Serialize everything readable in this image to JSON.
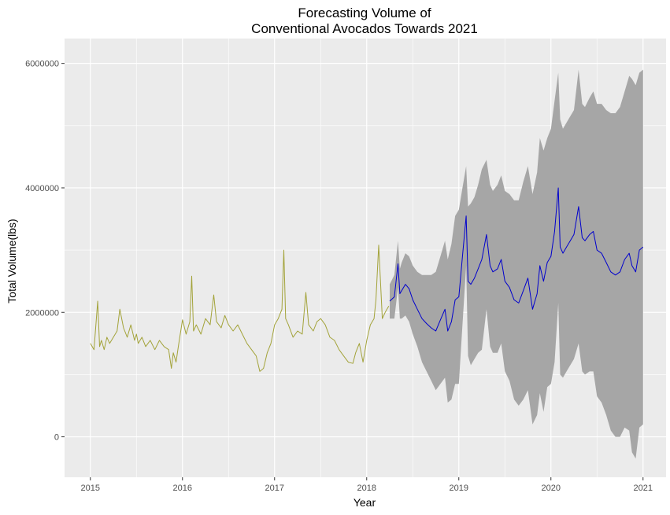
{
  "chart_data": {
    "type": "line",
    "title_line1": "Forecasting Volume of",
    "title_line2": "Conventional Avocados Towards 2021",
    "xlabel": "Year",
    "ylabel": "Total Volume(lbs)",
    "xlim": [
      2014.72,
      2021.25
    ],
    "ylim": [
      -650000,
      6400000
    ],
    "x_ticks": [
      2015,
      2016,
      2017,
      2018,
      2019,
      2020,
      2021
    ],
    "x_tick_labels": [
      "2015",
      "2016",
      "2017",
      "2018",
      "2019",
      "2020",
      "2021"
    ],
    "y_ticks": [
      0,
      2000000,
      4000000,
      6000000
    ],
    "y_tick_labels": [
      "0",
      "2000000",
      "4000000",
      "6000000"
    ],
    "colors": {
      "panel": "#ebebeb",
      "grid": "#ffffff",
      "history": "#a3a33a",
      "forecast": "#0000cd",
      "band": "#a6a6a6"
    },
    "series": [
      {
        "name": "historical",
        "x": [
          2015.0,
          2015.04,
          2015.08,
          2015.1,
          2015.12,
          2015.15,
          2015.18,
          2015.21,
          2015.25,
          2015.29,
          2015.32,
          2015.36,
          2015.4,
          2015.44,
          2015.48,
          2015.5,
          2015.52,
          2015.56,
          2015.6,
          2015.65,
          2015.7,
          2015.75,
          2015.8,
          2015.85,
          2015.88,
          2015.9,
          2015.93,
          2015.96,
          2016.0,
          2016.04,
          2016.08,
          2016.1,
          2016.12,
          2016.15,
          2016.2,
          2016.25,
          2016.3,
          2016.34,
          2016.37,
          2016.42,
          2016.46,
          2016.5,
          2016.55,
          2016.6,
          2016.65,
          2016.7,
          2016.75,
          2016.8,
          2016.84,
          2016.88,
          2016.92,
          2016.96,
          2017.0,
          2017.04,
          2017.08,
          2017.1,
          2017.12,
          2017.15,
          2017.2,
          2017.25,
          2017.3,
          2017.34,
          2017.37,
          2017.42,
          2017.46,
          2017.5,
          2017.55,
          2017.6,
          2017.65,
          2017.7,
          2017.75,
          2017.8,
          2017.85,
          2017.88,
          2017.92,
          2017.96,
          2018.0,
          2018.04,
          2018.08,
          2018.1,
          2018.13,
          2018.17,
          2018.2,
          2018.24
        ],
        "values": [
          1500000,
          1400000,
          2180000,
          1450000,
          1550000,
          1400000,
          1600000,
          1500000,
          1600000,
          1700000,
          2050000,
          1750000,
          1600000,
          1800000,
          1550000,
          1650000,
          1500000,
          1600000,
          1450000,
          1550000,
          1400000,
          1550000,
          1450000,
          1400000,
          1100000,
          1350000,
          1200000,
          1500000,
          1880000,
          1650000,
          1850000,
          2580000,
          1700000,
          1800000,
          1650000,
          1900000,
          1800000,
          2280000,
          1850000,
          1750000,
          1950000,
          1800000,
          1700000,
          1800000,
          1650000,
          1500000,
          1400000,
          1300000,
          1050000,
          1100000,
          1350000,
          1500000,
          1800000,
          1900000,
          2050000,
          3000000,
          1900000,
          1800000,
          1600000,
          1700000,
          1650000,
          2320000,
          1800000,
          1700000,
          1850000,
          1900000,
          1800000,
          1600000,
          1550000,
          1400000,
          1300000,
          1200000,
          1180000,
          1350000,
          1500000,
          1200000,
          1550000,
          1800000,
          1900000,
          2200000,
          3080000,
          1900000,
          2000000,
          2100000
        ]
      },
      {
        "name": "forecast",
        "x": [
          2018.25,
          2018.3,
          2018.34,
          2018.36,
          2018.38,
          2018.42,
          2018.46,
          2018.5,
          2018.55,
          2018.6,
          2018.65,
          2018.7,
          2018.75,
          2018.8,
          2018.85,
          2018.88,
          2018.92,
          2018.96,
          2019.0,
          2019.04,
          2019.08,
          2019.1,
          2019.13,
          2019.17,
          2019.21,
          2019.25,
          2019.3,
          2019.34,
          2019.37,
          2019.42,
          2019.46,
          2019.5,
          2019.55,
          2019.6,
          2019.65,
          2019.7,
          2019.75,
          2019.8,
          2019.85,
          2019.88,
          2019.92,
          2019.96,
          2020.0,
          2020.04,
          2020.08,
          2020.1,
          2020.13,
          2020.17,
          2020.21,
          2020.25,
          2020.3,
          2020.34,
          2020.37,
          2020.42,
          2020.46,
          2020.5,
          2020.55,
          2020.6,
          2020.65,
          2020.7,
          2020.75,
          2020.8,
          2020.85,
          2020.88,
          2020.92,
          2020.96,
          2021.0
        ],
        "values": [
          2180000,
          2250000,
          2780000,
          2300000,
          2350000,
          2450000,
          2380000,
          2200000,
          2050000,
          1900000,
          1820000,
          1750000,
          1700000,
          1880000,
          2050000,
          1700000,
          1850000,
          2200000,
          2250000,
          2900000,
          3550000,
          2500000,
          2450000,
          2550000,
          2700000,
          2850000,
          3250000,
          2750000,
          2650000,
          2700000,
          2850000,
          2500000,
          2400000,
          2200000,
          2150000,
          2350000,
          2550000,
          2050000,
          2300000,
          2750000,
          2500000,
          2800000,
          2900000,
          3300000,
          4000000,
          3050000,
          2950000,
          3050000,
          3150000,
          3250000,
          3700000,
          3200000,
          3150000,
          3250000,
          3300000,
          3000000,
          2950000,
          2800000,
          2650000,
          2600000,
          2650000,
          2850000,
          2950000,
          2750000,
          2650000,
          3000000,
          3050000
        ]
      },
      {
        "name": "forecast_upper",
        "x": [
          2018.25,
          2018.3,
          2018.34,
          2018.36,
          2018.38,
          2018.42,
          2018.46,
          2018.5,
          2018.55,
          2018.6,
          2018.65,
          2018.7,
          2018.75,
          2018.8,
          2018.85,
          2018.88,
          2018.92,
          2018.96,
          2019.0,
          2019.04,
          2019.08,
          2019.1,
          2019.13,
          2019.17,
          2019.21,
          2019.25,
          2019.3,
          2019.34,
          2019.37,
          2019.42,
          2019.46,
          2019.5,
          2019.55,
          2019.6,
          2019.65,
          2019.7,
          2019.75,
          2019.8,
          2019.85,
          2019.88,
          2019.92,
          2019.96,
          2020.0,
          2020.04,
          2020.08,
          2020.1,
          2020.13,
          2020.17,
          2020.21,
          2020.25,
          2020.3,
          2020.34,
          2020.37,
          2020.42,
          2020.46,
          2020.5,
          2020.55,
          2020.6,
          2020.65,
          2020.7,
          2020.75,
          2020.8,
          2020.85,
          2020.88,
          2020.92,
          2020.96,
          2021.0
        ],
        "values": [
          2450000,
          2600000,
          3150000,
          2700000,
          2800000,
          2950000,
          2900000,
          2750000,
          2650000,
          2600000,
          2600000,
          2600000,
          2650000,
          2900000,
          3150000,
          2850000,
          3100000,
          3550000,
          3650000,
          4000000,
          4350000,
          3700000,
          3750000,
          3850000,
          4050000,
          4300000,
          4450000,
          4050000,
          3950000,
          4050000,
          4200000,
          3950000,
          3900000,
          3800000,
          3800000,
          4100000,
          4350000,
          3900000,
          4250000,
          4800000,
          4600000,
          4800000,
          4950000,
          5400000,
          5850000,
          5100000,
          4950000,
          5050000,
          5150000,
          5250000,
          5900000,
          5350000,
          5300000,
          5450000,
          5550000,
          5350000,
          5350000,
          5250000,
          5200000,
          5200000,
          5300000,
          5550000,
          5800000,
          5750000,
          5650000,
          5850000,
          5900000
        ]
      },
      {
        "name": "forecast_lower",
        "x": [
          2018.25,
          2018.3,
          2018.34,
          2018.36,
          2018.38,
          2018.42,
          2018.46,
          2018.5,
          2018.55,
          2018.6,
          2018.65,
          2018.7,
          2018.75,
          2018.8,
          2018.85,
          2018.88,
          2018.92,
          2018.96,
          2019.0,
          2019.04,
          2019.08,
          2019.1,
          2019.13,
          2019.17,
          2019.21,
          2019.25,
          2019.3,
          2019.34,
          2019.37,
          2019.42,
          2019.46,
          2019.5,
          2019.55,
          2019.6,
          2019.65,
          2019.7,
          2019.75,
          2019.8,
          2019.85,
          2019.88,
          2019.92,
          2019.96,
          2020.0,
          2020.04,
          2020.08,
          2020.1,
          2020.13,
          2020.17,
          2020.21,
          2020.25,
          2020.3,
          2020.34,
          2020.37,
          2020.42,
          2020.46,
          2020.5,
          2020.55,
          2020.6,
          2020.65,
          2020.7,
          2020.75,
          2020.8,
          2020.85,
          2020.88,
          2020.92,
          2020.96,
          2021.0
        ],
        "values": [
          1900000,
          1900000,
          2400000,
          1900000,
          1900000,
          1950000,
          1850000,
          1650000,
          1450000,
          1200000,
          1050000,
          900000,
          750000,
          850000,
          950000,
          550000,
          600000,
          850000,
          850000,
          1800000,
          2750000,
          1300000,
          1150000,
          1250000,
          1350000,
          1400000,
          2050000,
          1450000,
          1350000,
          1350000,
          1500000,
          1050000,
          900000,
          600000,
          500000,
          600000,
          750000,
          200000,
          350000,
          700000,
          400000,
          800000,
          850000,
          1200000,
          2150000,
          1000000,
          950000,
          1050000,
          1150000,
          1250000,
          1500000,
          1050000,
          1000000,
          1050000,
          1050000,
          650000,
          550000,
          350000,
          100000,
          0,
          0,
          150000,
          100000,
          -250000,
          -350000,
          150000,
          200000
        ]
      }
    ]
  }
}
